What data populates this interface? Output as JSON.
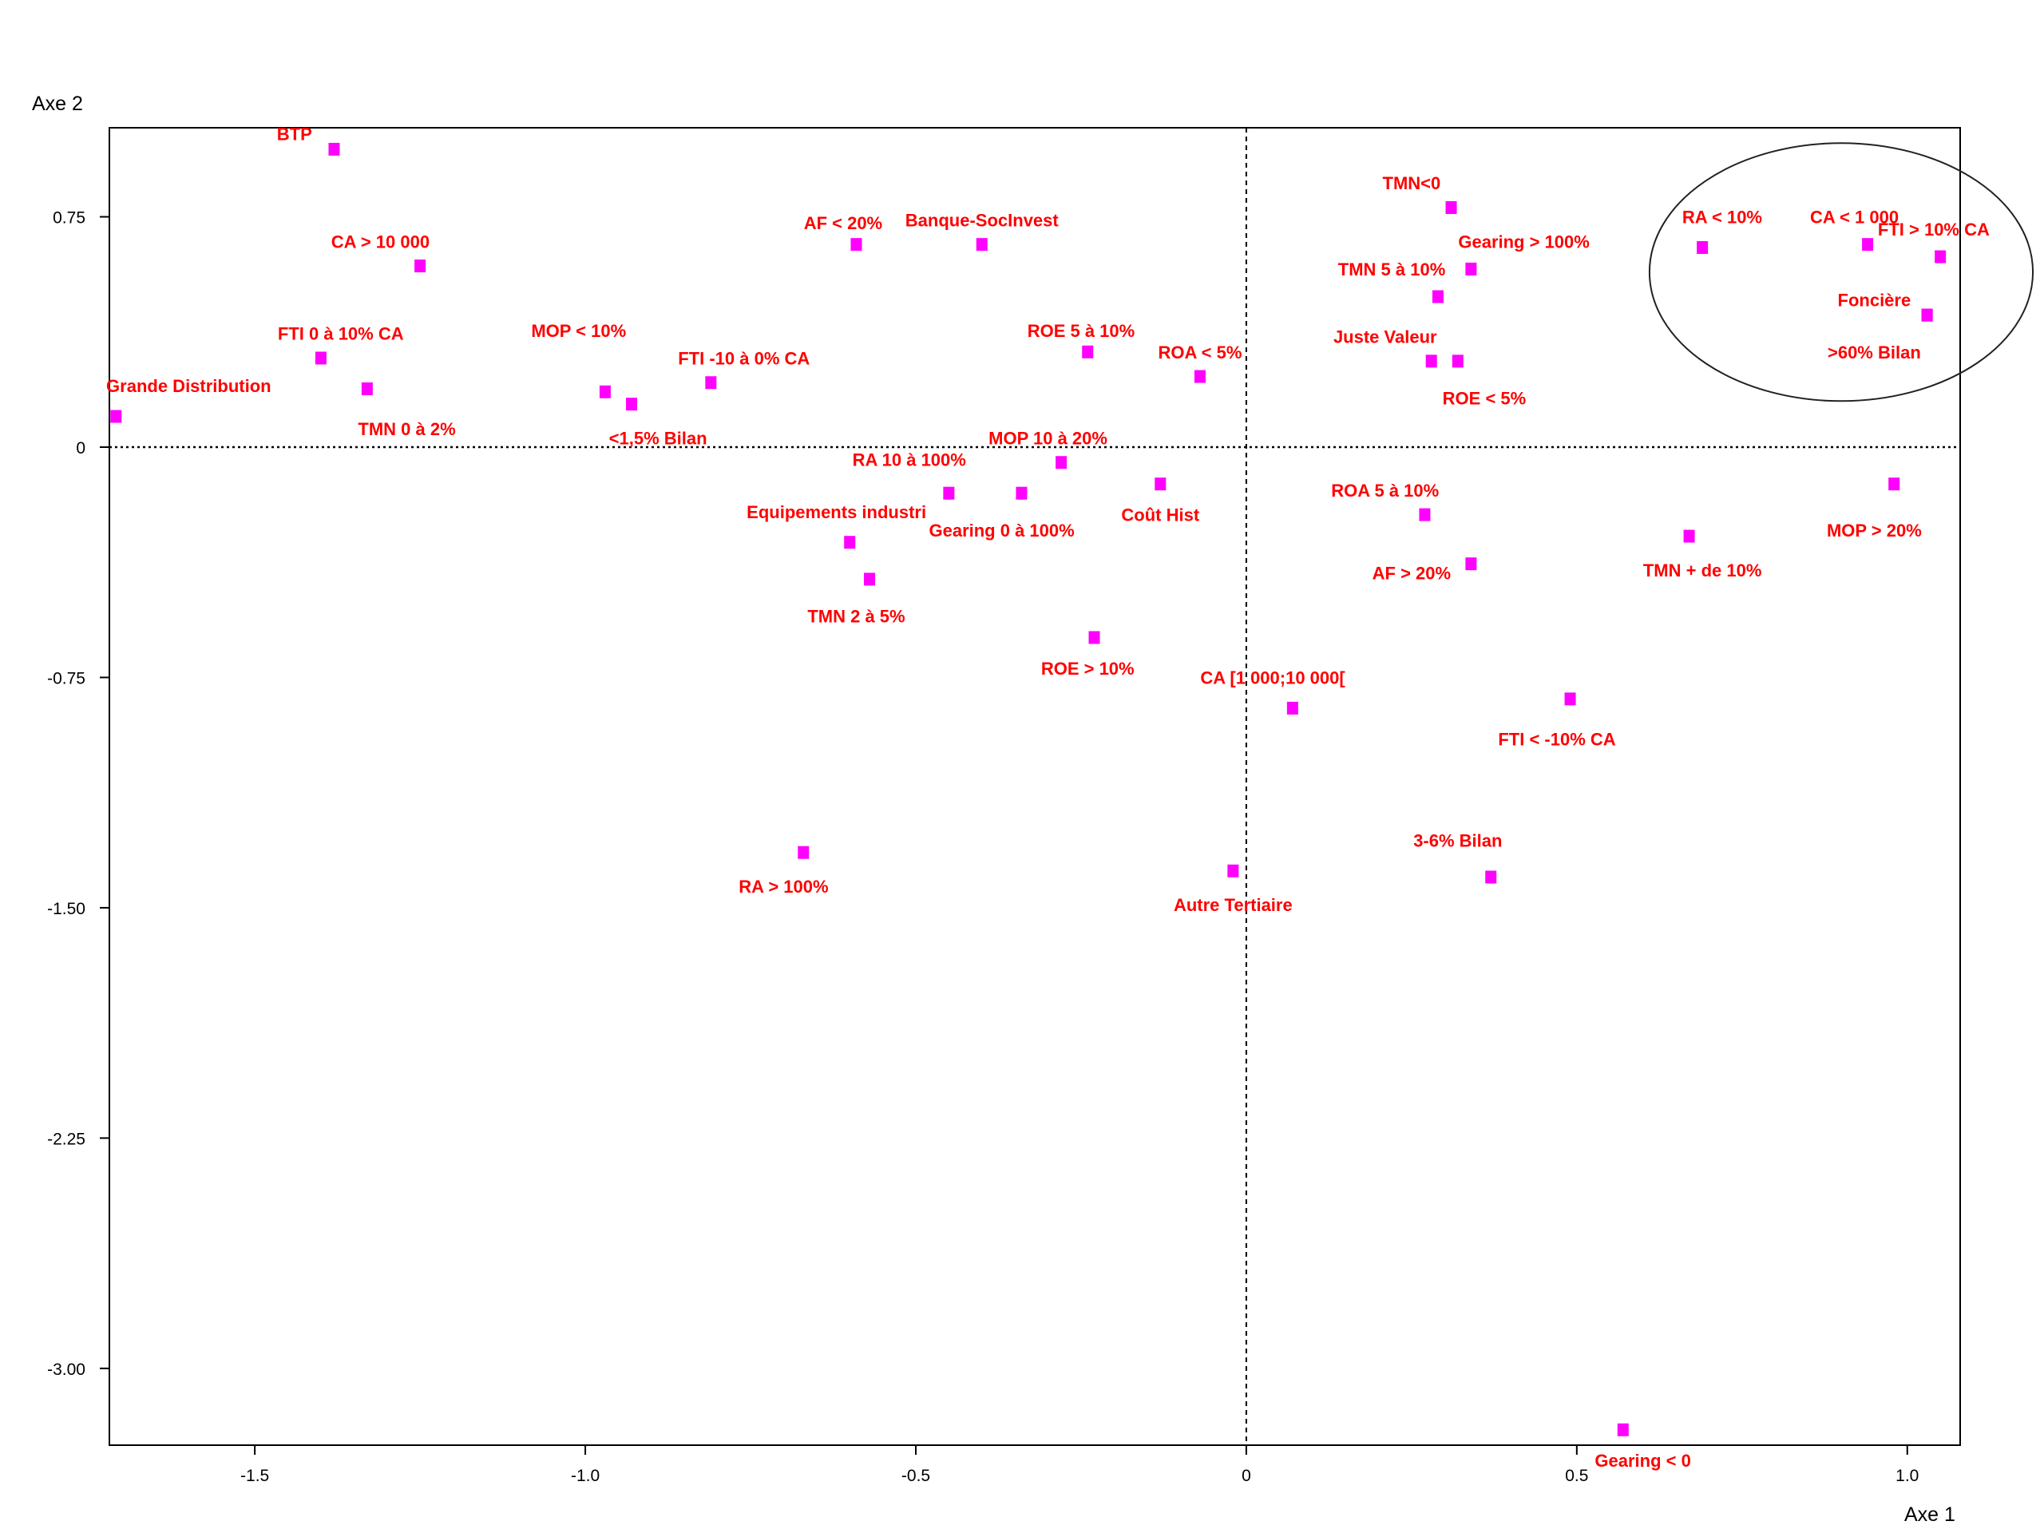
{
  "chart_data": {
    "type": "scatter",
    "xlabel": "Axe 1",
    "ylabel": "Axe 2",
    "xlim": [
      -1.72,
      1.08
    ],
    "ylim": [
      -3.25,
      1.04
    ],
    "x_ticks": [
      {
        "value": -1.5,
        "label": "-1.5"
      },
      {
        "value": -1.0,
        "label": "-1.0"
      },
      {
        "value": -0.5,
        "label": "-0.5"
      },
      {
        "value": 0,
        "label": "0"
      },
      {
        "value": 0.5,
        "label": "0.5"
      },
      {
        "value": 1.0,
        "label": "1.0"
      }
    ],
    "y_ticks": [
      {
        "value": 0.75,
        "label": "0.75"
      },
      {
        "value": 0,
        "label": "0"
      },
      {
        "value": -0.75,
        "label": "-0.75"
      },
      {
        "value": -1.5,
        "label": "-1.50"
      },
      {
        "value": -2.25,
        "label": "-2.25"
      },
      {
        "value": -3.0,
        "label": "-3.00"
      }
    ],
    "marker_color": "#ff00ff",
    "label_color": "#ff0000",
    "points": [
      {
        "label": "BTP",
        "x": -1.38,
        "y": 0.97,
        "dx": -0.06,
        "dy": 0.05
      },
      {
        "label": "CA > 10 000",
        "x": -1.25,
        "y": 0.59,
        "dx": -0.06,
        "dy": 0.08
      },
      {
        "label": "FTI 0 à 10% CA",
        "x": -1.4,
        "y": 0.29,
        "dx": 0.03,
        "dy": 0.08
      },
      {
        "label": "TMN 0 à 2%",
        "x": -1.33,
        "y": 0.19,
        "dx": 0.06,
        "dy": -0.13
      },
      {
        "label": "Grande Distribution",
        "x": -1.71,
        "y": 0.1,
        "dx": 0.11,
        "dy": 0.1
      },
      {
        "label": "MOP < 10%",
        "x": -0.97,
        "y": 0.18,
        "dx": -0.04,
        "dy": 0.2
      },
      {
        "label": "<1,5% Bilan",
        "x": -0.93,
        "y": 0.14,
        "dx": 0.04,
        "dy": -0.11
      },
      {
        "label": "FTI -10 à 0% CA",
        "x": -0.81,
        "y": 0.21,
        "dx": 0.05,
        "dy": 0.08
      },
      {
        "label": "AF < 20%",
        "x": -0.59,
        "y": 0.66,
        "dx": -0.02,
        "dy": 0.07
      },
      {
        "label": "Banque-SocInvest",
        "x": -0.4,
        "y": 0.66,
        "dx": 0.0,
        "dy": 0.08
      },
      {
        "label": "ROE 5 à 10%",
        "x": -0.24,
        "y": 0.31,
        "dx": -0.01,
        "dy": 0.07
      },
      {
        "label": "ROA < 5%",
        "x": -0.07,
        "y": 0.23,
        "dx": 0.0,
        "dy": 0.08
      },
      {
        "label": "MOP 10 à 20%",
        "x": -0.28,
        "y": -0.05,
        "dx": -0.02,
        "dy": 0.08
      },
      {
        "label": "RA 10 à 100%",
        "x": -0.45,
        "y": -0.15,
        "dx": -0.06,
        "dy": 0.11
      },
      {
        "label": "Gearing 0 à 100%",
        "x": -0.34,
        "y": -0.15,
        "dx": -0.03,
        "dy": -0.12
      },
      {
        "label": "Coût Hist",
        "x": -0.13,
        "y": -0.12,
        "dx": 0.0,
        "dy": -0.1
      },
      {
        "label": "Equipements industri",
        "x": -0.6,
        "y": -0.31,
        "dx": -0.02,
        "dy": 0.1
      },
      {
        "label": "TMN 2 à 5%",
        "x": -0.57,
        "y": -0.43,
        "dx": -0.02,
        "dy": -0.12
      },
      {
        "label": "ROE > 10%",
        "x": -0.23,
        "y": -0.62,
        "dx": -0.01,
        "dy": -0.1
      },
      {
        "label": "CA [1 000;10 000[",
        "x": 0.07,
        "y": -0.85,
        "dx": -0.03,
        "dy": 0.1
      },
      {
        "label": "RA > 100%",
        "x": -0.67,
        "y": -1.32,
        "dx": -0.03,
        "dy": -0.11
      },
      {
        "label": "Autre Tertiaire",
        "x": -0.02,
        "y": -1.38,
        "dx": 0.0,
        "dy": -0.11
      },
      {
        "label": "TMN<0",
        "x": 0.31,
        "y": 0.78,
        "dx": -0.06,
        "dy": 0.08
      },
      {
        "label": "Gearing > 100%",
        "x": 0.34,
        "y": 0.58,
        "dx": 0.08,
        "dy": 0.09
      },
      {
        "label": "TMN 5 à 10%",
        "x": 0.29,
        "y": 0.49,
        "dx": -0.07,
        "dy": 0.09
      },
      {
        "label": "Juste Valeur",
        "x": 0.28,
        "y": 0.28,
        "dx": -0.07,
        "dy": 0.08
      },
      {
        "label": "ROE < 5%",
        "x": 0.32,
        "y": 0.28,
        "dx": 0.04,
        "dy": -0.12
      },
      {
        "label": "ROA 5 à 10%",
        "x": 0.27,
        "y": -0.22,
        "dx": -0.06,
        "dy": 0.08
      },
      {
        "label": "AF > 20%",
        "x": 0.34,
        "y": -0.38,
        "dx": -0.09,
        "dy": -0.03
      },
      {
        "label": "FTI < -10% CA",
        "x": 0.49,
        "y": -0.82,
        "dx": -0.02,
        "dy": -0.13
      },
      {
        "label": "3-6% Bilan",
        "x": 0.37,
        "y": -1.4,
        "dx": -0.05,
        "dy": 0.12
      },
      {
        "label": "Gearing < 0",
        "x": 0.57,
        "y": -3.2,
        "dx": 0.03,
        "dy": -0.1
      },
      {
        "label": "RA < 10%",
        "x": 0.69,
        "y": 0.65,
        "dx": 0.03,
        "dy": 0.1
      },
      {
        "label": "CA < 1 000",
        "x": 0.94,
        "y": 0.66,
        "dx": -0.02,
        "dy": 0.09
      },
      {
        "label": "FTI > 10% CA",
        "x": 1.05,
        "y": 0.62,
        "dx": -0.01,
        "dy": 0.09
      },
      {
        "label": "Foncière",
        "x": 1.03,
        "y": 0.43,
        "dx": -0.08,
        "dy": 0.05
      },
      {
        "label": ">60% Bilan",
        "x": 1.03,
        "y": 0.43,
        "dx": -0.08,
        "dy": -0.12
      },
      {
        "label": "TMN + de 10%",
        "x": 0.67,
        "y": -0.29,
        "dx": 0.02,
        "dy": -0.11
      },
      {
        "label": "MOP > 20%",
        "x": 0.98,
        "y": -0.12,
        "dx": -0.03,
        "dy": -0.15
      }
    ],
    "highlight_ellipse": {
      "cx": 0.9,
      "cy": 0.57,
      "rx": 0.29,
      "ry": 0.42
    },
    "grid": false
  }
}
